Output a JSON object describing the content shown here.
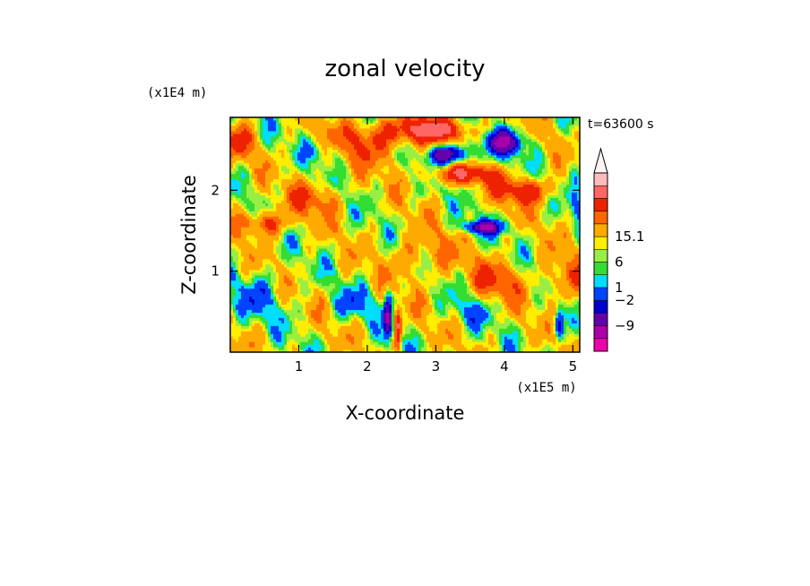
{
  "chart_data": {
    "type": "heatmap",
    "title": "zonal velocity",
    "xlabel": "X-coordinate",
    "ylabel": "Z-coordinate",
    "x_multiplier": "(x1E5 m)",
    "y_multiplier": "(x1E4 m)",
    "time_label": "t=63600 s",
    "xlim": [
      0,
      5.1
    ],
    "ylim": [
      0,
      2.9
    ],
    "x_ticks": [
      {
        "value": 1,
        "label": "1"
      },
      {
        "value": 2,
        "label": "2"
      },
      {
        "value": 3,
        "label": "3"
      },
      {
        "value": 4,
        "label": "4"
      },
      {
        "value": 5,
        "label": "5"
      }
    ],
    "y_ticks": [
      {
        "value": 1,
        "label": "1"
      },
      {
        "value": 2,
        "label": "2"
      }
    ],
    "colorbar": {
      "extend_max": true,
      "labeled_levels": [
        {
          "label": "15.1",
          "level": 9
        },
        {
          "label": "6",
          "level": 7
        },
        {
          "label": "1",
          "level": 5
        },
        {
          "label": "−2",
          "level": 4
        },
        {
          "label": "−9",
          "level": 2
        }
      ],
      "colors": [
        "#ee00aa",
        "#aa00aa",
        "#6600aa",
        "#0000cc",
        "#0044ff",
        "#00ddff",
        "#33dd33",
        "#99ee44",
        "#ffee00",
        "#ffaa00",
        "#ff6600",
        "#ee2200",
        "#ff6666",
        "#ffbbbb"
      ]
    },
    "field_scale_note": "",
    "blobs": [
      {
        "x": 0.5,
        "z": 1.6,
        "sx": 0.35,
        "sz": 0.15,
        "a": 6
      },
      {
        "x": 1.2,
        "z": 1.9,
        "sx": 0.4,
        "sz": 0.2,
        "a": 4
      },
      {
        "x": 2.0,
        "z": 2.6,
        "sx": 0.6,
        "sz": 0.25,
        "a": 5
      },
      {
        "x": 2.9,
        "z": 2.75,
        "sx": 0.6,
        "sz": 0.15,
        "a": 8
      },
      {
        "x": 3.4,
        "z": 2.2,
        "sx": 0.5,
        "sz": 0.12,
        "a": 7
      },
      {
        "x": 4.3,
        "z": 2.0,
        "sx": 0.4,
        "sz": 0.15,
        "a": 7
      },
      {
        "x": 2.8,
        "z": 1.2,
        "sx": 0.5,
        "sz": 0.3,
        "a": 3
      },
      {
        "x": 3.9,
        "z": 0.9,
        "sx": 0.4,
        "sz": 0.25,
        "a": 4
      },
      {
        "x": 4.9,
        "z": 0.9,
        "sx": 0.3,
        "sz": 0.3,
        "a": 4
      },
      {
        "x": 3.2,
        "z": 2.45,
        "sx": 0.3,
        "sz": 0.12,
        "a": -10
      },
      {
        "x": 4.0,
        "z": 2.6,
        "sx": 0.3,
        "sz": 0.15,
        "a": -9
      },
      {
        "x": 3.7,
        "z": 1.55,
        "sx": 0.3,
        "sz": 0.08,
        "a": -9
      },
      {
        "x": 1.4,
        "z": 2.5,
        "sx": 0.3,
        "sz": 0.15,
        "a": -3
      },
      {
        "x": 0.4,
        "z": 0.7,
        "sx": 0.4,
        "sz": 0.3,
        "a": -3
      },
      {
        "x": 1.8,
        "z": 0.6,
        "sx": 0.3,
        "sz": 0.2,
        "a": -3
      },
      {
        "x": 3.5,
        "z": 0.5,
        "sx": 0.3,
        "sz": 0.2,
        "a": -2.5
      },
      {
        "x": 2.3,
        "z": 0.45,
        "sx": 0.06,
        "sz": 0.3,
        "a": -9
      },
      {
        "x": 2.45,
        "z": 0.3,
        "sx": 0.05,
        "sz": 0.25,
        "a": 8
      },
      {
        "x": 4.8,
        "z": 0.35,
        "sx": 0.07,
        "sz": 0.2,
        "a": -8
      },
      {
        "x": 5.05,
        "z": 1.9,
        "sx": 0.1,
        "sz": 0.4,
        "a": -3
      },
      {
        "x": 0.15,
        "z": 2.6,
        "sx": 0.2,
        "sz": 0.2,
        "a": 5
      }
    ]
  }
}
